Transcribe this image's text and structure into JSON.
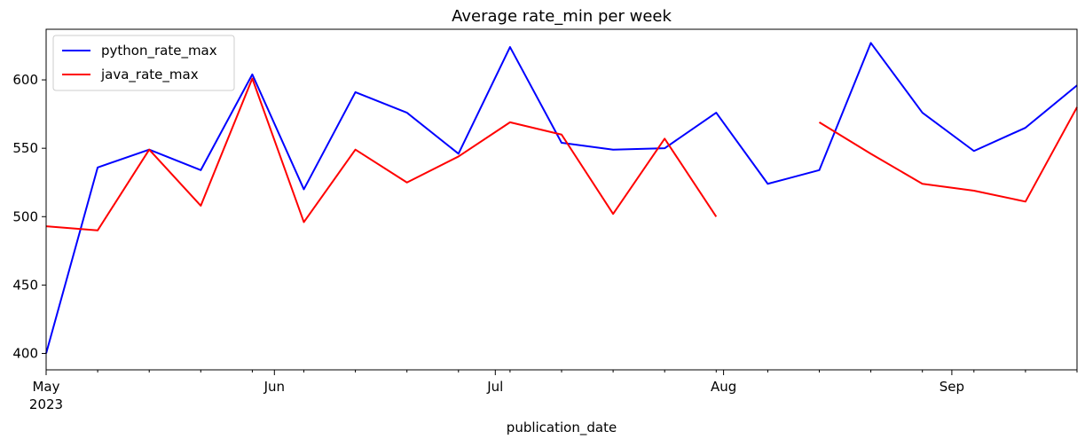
{
  "chart_data": {
    "type": "line",
    "title": "Average rate_min per week",
    "xlabel": "publication_date",
    "ylabel": "",
    "x_range": [
      "2023-05-01",
      "2023-09-18"
    ],
    "ylim": [
      388,
      637
    ],
    "y_ticks": [
      400,
      450,
      500,
      550,
      600
    ],
    "x_major_ticks": [
      {
        "date": "2023-05-01",
        "label": "May",
        "sublabel": "2023"
      },
      {
        "date": "2023-06-01",
        "label": "Jun",
        "sublabel": ""
      },
      {
        "date": "2023-07-01",
        "label": "Jul",
        "sublabel": ""
      },
      {
        "date": "2023-08-01",
        "label": "Aug",
        "sublabel": ""
      },
      {
        "date": "2023-09-01",
        "label": "Sep",
        "sublabel": ""
      }
    ],
    "x_minor_ticks": [
      "2023-05-08",
      "2023-05-15",
      "2023-05-22",
      "2023-05-29",
      "2023-06-05",
      "2023-06-12",
      "2023-06-19",
      "2023-06-26",
      "2023-07-03",
      "2023-07-10",
      "2023-07-17",
      "2023-07-24",
      "2023-07-31",
      "2023-08-07",
      "2023-08-14",
      "2023-08-21",
      "2023-08-28",
      "2023-09-04",
      "2023-09-11",
      "2023-09-18"
    ],
    "grid": false,
    "legend_position": "top-left",
    "x": [
      "2023-05-01",
      "2023-05-08",
      "2023-05-15",
      "2023-05-22",
      "2023-05-29",
      "2023-06-05",
      "2023-06-12",
      "2023-06-19",
      "2023-06-26",
      "2023-07-03",
      "2023-07-10",
      "2023-07-17",
      "2023-07-24",
      "2023-07-31",
      "2023-08-07",
      "2023-08-14",
      "2023-08-21",
      "2023-08-28",
      "2023-09-04",
      "2023-09-11",
      "2023-09-18"
    ],
    "series": [
      {
        "name": "python_rate_max",
        "color": "#0000ff",
        "values": [
          400,
          536,
          549,
          534,
          604,
          520,
          591,
          576,
          546,
          624,
          554,
          549,
          550,
          576,
          524,
          534,
          627,
          576,
          548,
          565,
          596
        ]
      },
      {
        "name": "java_rate_max",
        "color": "#ff0000",
        "values": [
          493,
          490,
          549,
          508,
          601,
          496,
          549,
          525,
          544,
          569,
          560,
          502,
          557,
          500,
          null,
          569,
          546,
          524,
          519,
          511,
          580
        ]
      }
    ]
  }
}
